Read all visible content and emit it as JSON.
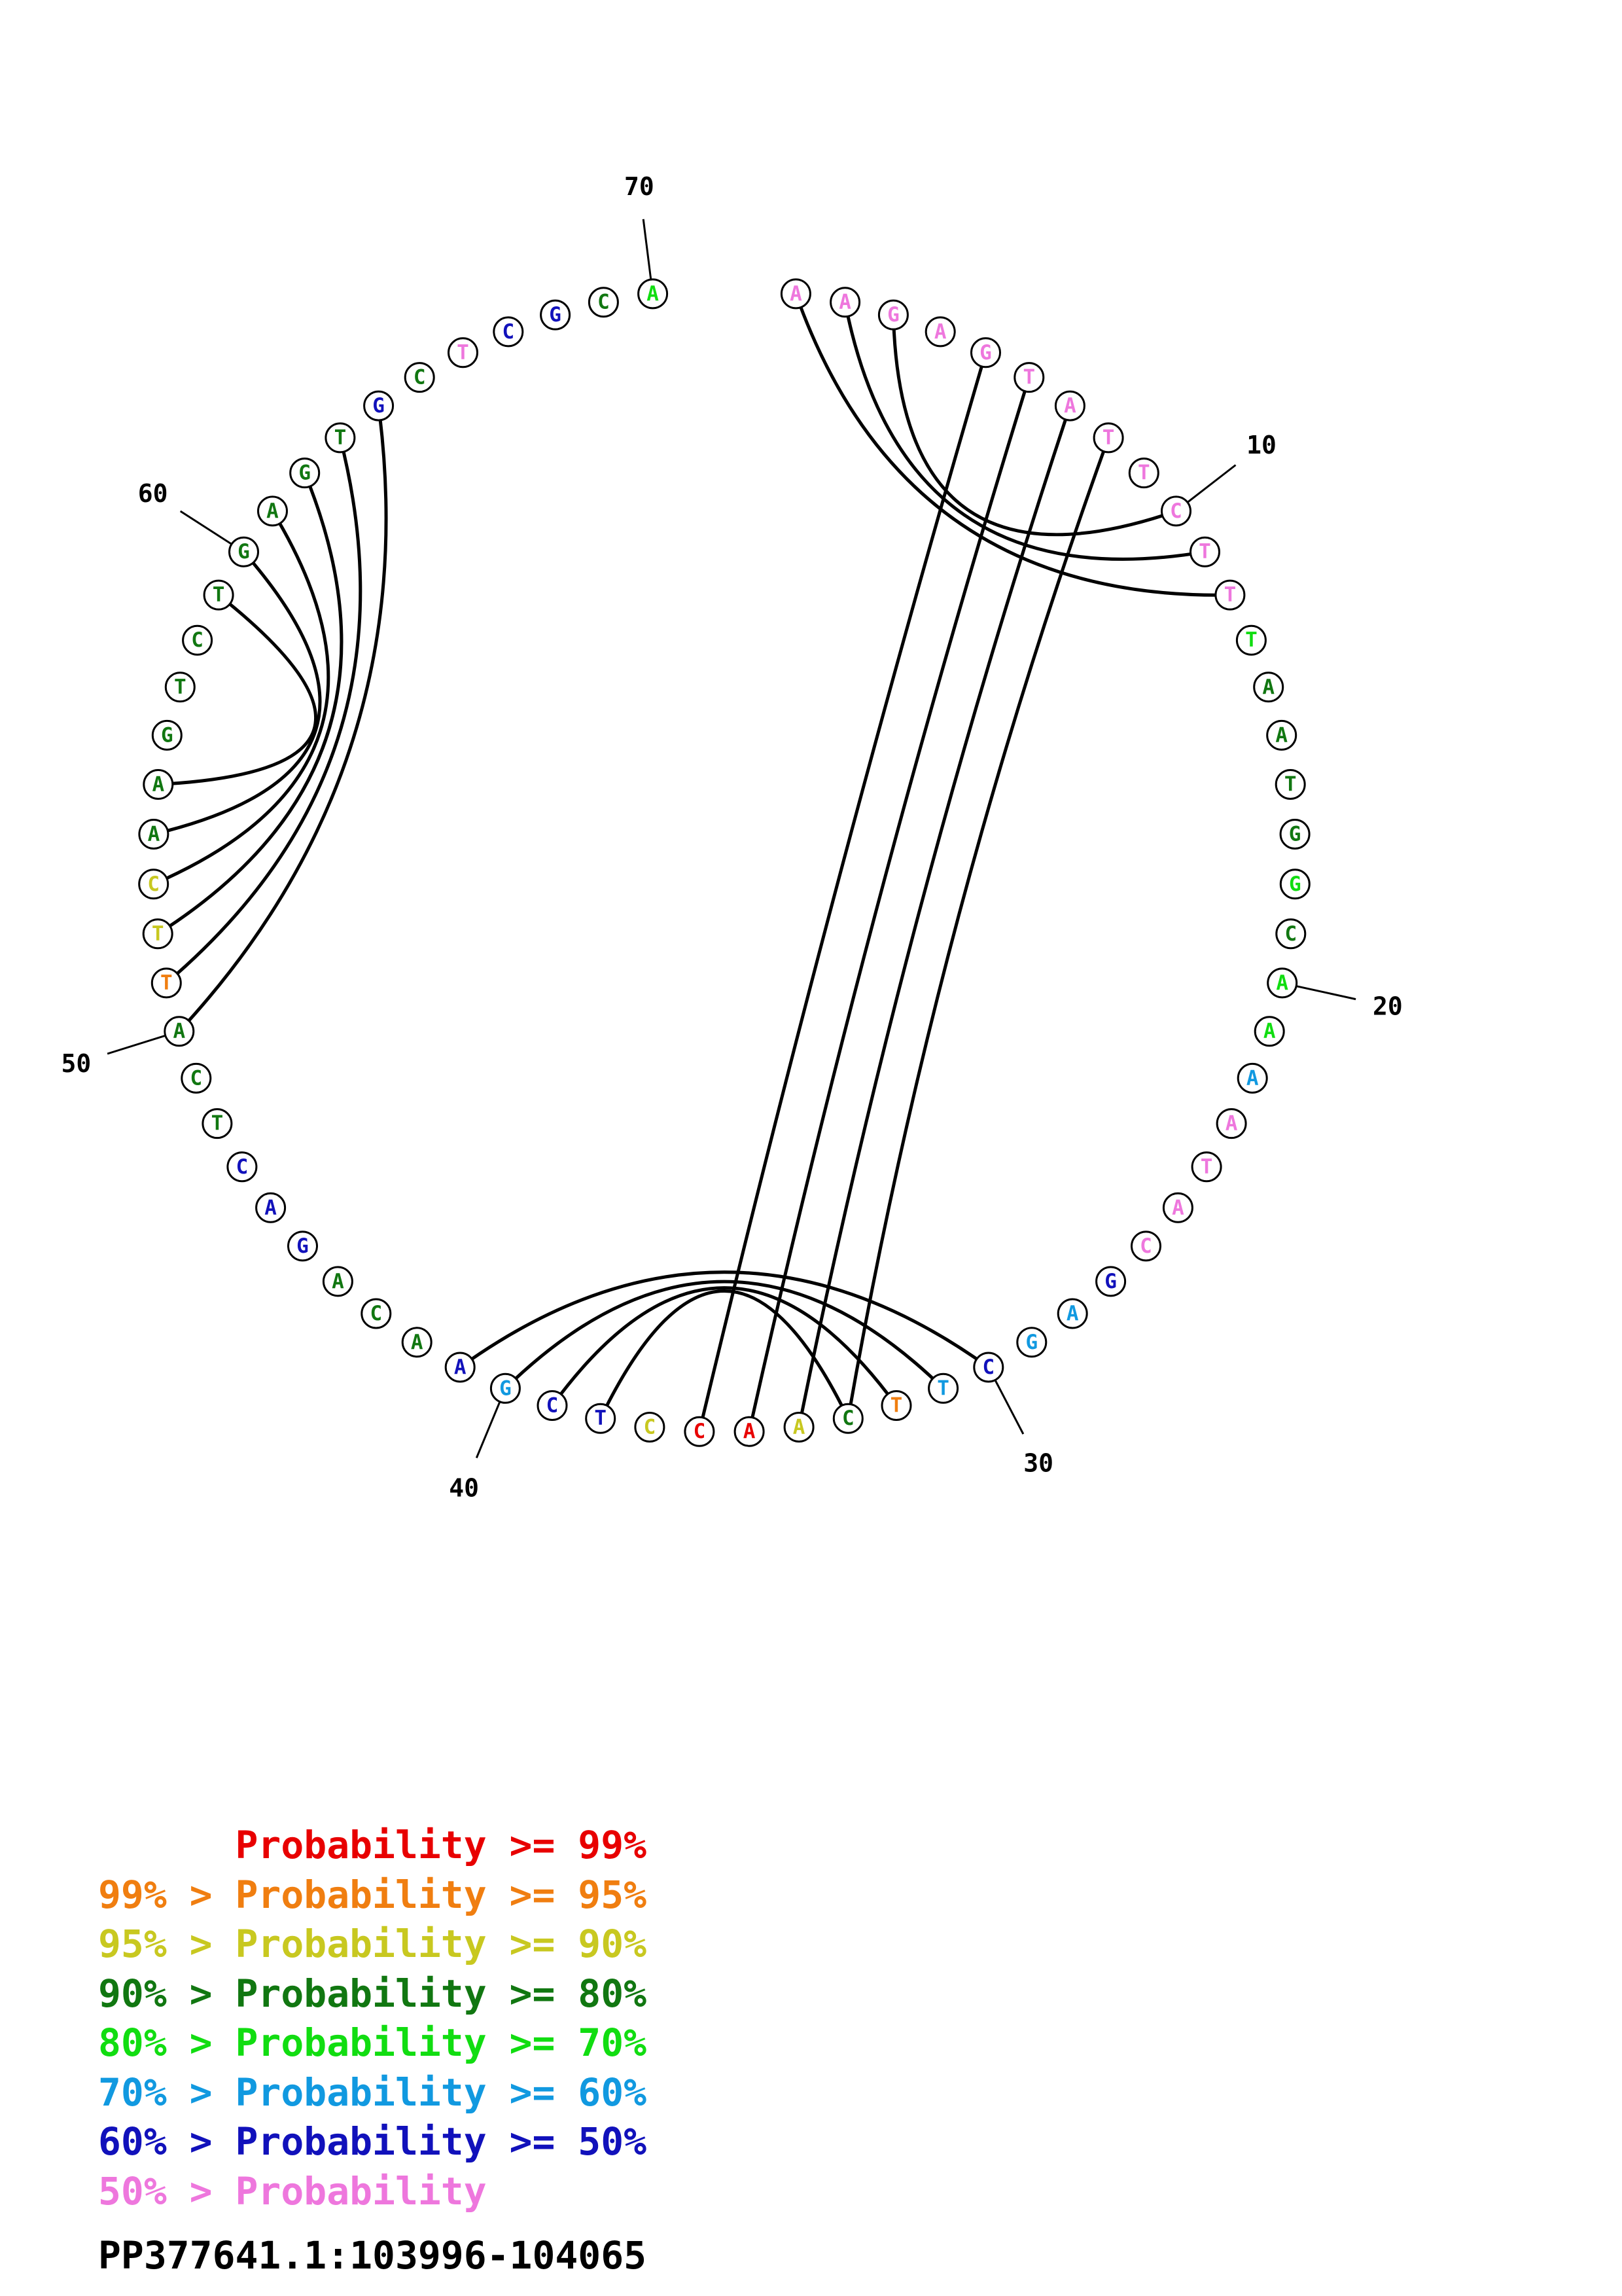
{
  "sequence": "AAGAGTATTCTTTAATGGCAAAATACGAGCTTCAACCTCGAACAGACTCATTCAAGTCTGAGTGCTCGCA",
  "probability_classes": [
    "p3",
    "p3",
    "p3",
    "p3",
    "p3",
    "p3",
    "p3",
    "p3",
    "p3",
    "p3",
    "p3",
    "p3",
    "p2",
    "p1",
    "p1",
    "p1",
    "p1",
    "p2",
    "p1",
    "p2",
    "p2",
    "p4",
    "p3",
    "p3",
    "p3",
    "p3",
    "p5",
    "p4",
    "p4",
    "p5",
    "p4",
    "p7",
    "p1",
    "p6",
    "p8",
    "p8",
    "p6",
    "p5",
    "p5",
    "p4",
    "p5",
    "p1",
    "p1",
    "p1",
    "p5",
    "p5",
    "p5",
    "p1",
    "p1",
    "p1",
    "p7",
    "p6",
    "p6",
    "p1",
    "p1",
    "p1",
    "p1",
    "p1",
    "p1",
    "p1",
    "p1",
    "p1",
    "p1",
    "p5",
    "p1",
    "p3",
    "p5",
    "p5",
    "p1",
    "p2"
  ],
  "color_classes": {
    "p8": "#e80000",
    "p7": "#f07e10",
    "p6": "#c8c820",
    "p1": "#117711",
    "p2": "#11dd11",
    "p4": "#1199e0",
    "p5": "#1111bb",
    "p3": "#ee77dd"
  },
  "base_pairs": [
    [
      1,
      17
    ],
    [
      2,
      16
    ],
    [
      3,
      15
    ],
    [
      4,
      14
    ],
    [
      5,
      13
    ],
    [
      6,
      12
    ],
    [
      7,
      11
    ],
    [
      8,
      10
    ],
    [
      9,
      8
    ],
    [
      14,
      36
    ],
    [
      15,
      35
    ],
    [
      16,
      34
    ],
    [
      17,
      33
    ],
    [
      30,
      42
    ],
    [
      31,
      41
    ],
    [
      32,
      40
    ],
    [
      33,
      39
    ],
    [
      24,
      42
    ],
    [
      23,
      43
    ],
    [
      22,
      44
    ],
    [
      21,
      45
    ],
    [
      20,
      46
    ],
    [
      19,
      47
    ]
  ],
  "pairs_note": "",
  "position_ticks": [
    "10",
    "20",
    "30",
    "40",
    "50",
    "60",
    "70"
  ],
  "legend": [
    {
      "prefix": "    ",
      "cmp": "Probability >= 99%",
      "color": "#e80000"
    },
    {
      "prefix": "99% > ",
      "cmp": "Probability >= 95%",
      "color": "#f07e10"
    },
    {
      "prefix": "95% > ",
      "cmp": "Probability >= 90%",
      "color": "#c8c820"
    },
    {
      "prefix": "90% > ",
      "cmp": "Probability >= 80%",
      "color": "#117711"
    },
    {
      "prefix": "80% > ",
      "cmp": "Probability >= 70%",
      "color": "#11dd11"
    },
    {
      "prefix": "70% > ",
      "cmp": "Probability >= 60%",
      "color": "#1199e0"
    },
    {
      "prefix": "60% > ",
      "cmp": "Probability >= 50%",
      "color": "#1111bb"
    },
    {
      "prefix": "50% > ",
      "cmp": "Probability",
      "color": "#ee77dd"
    }
  ],
  "legend_text": [
    "      Probability >= 99%",
    "99% > Probability >= 95%",
    "95% > Probability >= 90%",
    "90% > Probability >= 80%",
    "80% > Probability >= 70%",
    "70% > Probability >= 60%",
    "60% > Probability >= 50%",
    "50% > Probability"
  ],
  "caption": "PP377641.1:103996-104065"
}
